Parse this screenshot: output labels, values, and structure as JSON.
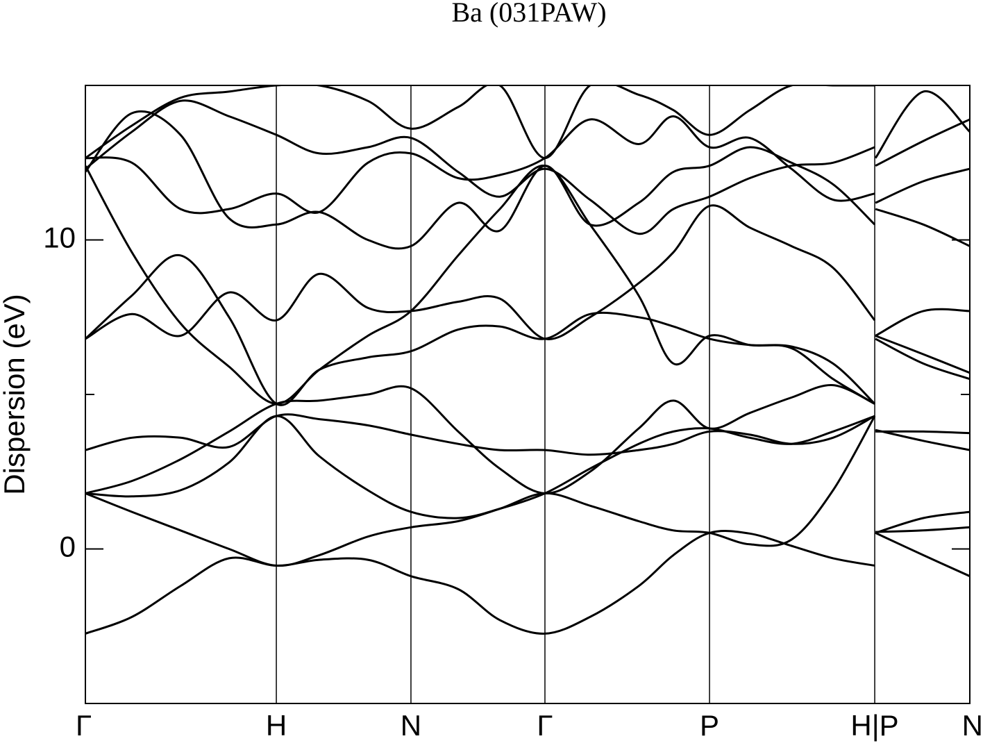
{
  "chart_data": {
    "type": "line",
    "title": "Ba (031PAW)",
    "y_label": "Dispersion (eV)",
    "x": [
      0,
      0.0526,
      0.1075,
      0.1625,
      0.2159,
      0.2645,
      0.3195,
      0.3681,
      0.4215,
      0.4686,
      0.5196,
      0.5706,
      0.6256,
      0.6648,
      0.7057,
      0.7512,
      0.7983,
      0.8454,
      0.8925,
      0.8929,
      0.8933,
      0.9474,
      1
    ],
    "xlim": [
      0,
      1
    ],
    "xticks": [
      {
        "value": 0,
        "label": "Γ"
      },
      {
        "value": 0.2159,
        "label": "H"
      },
      {
        "value": 0.3681,
        "label": "N"
      },
      {
        "value": 0.5196,
        "label": "Γ"
      },
      {
        "value": 0.7057,
        "label": "P"
      },
      {
        "value": 0.8925,
        "label": "H|P"
      },
      {
        "value": 1,
        "label": "N"
      }
    ],
    "ylim": [
      -5,
      15
    ],
    "yticks": [
      0,
      10
    ],
    "minor_yticks": [
      5
    ],
    "grid": true,
    "series": [
      {
        "color": "#000000",
        "values": [
          -2.74,
          -2.2,
          -1.2,
          -0.3,
          -0.54,
          -0.35,
          -0.35,
          -0.88,
          -1.3,
          -2.3,
          -2.74,
          -2.2,
          -1.2,
          -0.2,
          0.52,
          0.5,
          0.1,
          -0.3,
          -0.54,
          null,
          0.52,
          -0.2,
          -0.88
        ]
      },
      {
        "color": "#000000",
        "values": [
          1.8,
          1.2,
          0.6,
          0,
          -0.54,
          -0.2,
          0.4,
          0.7,
          0.9,
          1.3,
          1.8,
          1.4,
          0.9,
          0.6,
          0.52,
          0.15,
          0.3,
          1.9,
          4.3,
          null,
          0.55,
          0.6,
          0.7
        ]
      },
      {
        "color": "#000000",
        "values": [
          1.8,
          1.7,
          1.9,
          2.8,
          4.3,
          3.0,
          1.9,
          1.2,
          1.0,
          1.3,
          1.8,
          2.6,
          3.4,
          3.8,
          3.9,
          3.6,
          3.4,
          3.8,
          4.3,
          null,
          0.52,
          1.0,
          1.2
        ]
      },
      {
        "color": "#000000",
        "values": [
          3.2,
          3.6,
          3.6,
          3.3,
          4.3,
          4.2,
          4.0,
          3.7,
          3.4,
          3.2,
          3.2,
          3.05,
          3.2,
          3.4,
          3.8,
          3.7,
          3.4,
          3.6,
          4.3,
          null,
          3.8,
          3.8,
          3.75
        ]
      },
      {
        "color": "#000000",
        "values": [
          1.8,
          2.2,
          2.9,
          3.8,
          4.7,
          4.8,
          5.0,
          5.2,
          3.8,
          2.6,
          1.8,
          2.5,
          3.9,
          4.8,
          3.9,
          4.4,
          4.9,
          5.3,
          4.7,
          null,
          3.85,
          3.5,
          3.2
        ]
      },
      {
        "color": "#000000",
        "values": [
          6.8,
          8.2,
          9.5,
          7.5,
          4.7,
          5.8,
          6.2,
          6.4,
          7.1,
          7.2,
          6.8,
          7.6,
          7.5,
          7.2,
          6.8,
          6.6,
          6.55,
          6.0,
          4.7,
          null,
          6.8,
          6.0,
          5.5
        ]
      },
      {
        "color": "#000000",
        "values": [
          6.8,
          7.6,
          6.9,
          8.3,
          7.4,
          8.9,
          7.8,
          7.7,
          8.0,
          8.1,
          6.8,
          7.5,
          8.6,
          9.6,
          11.1,
          10.4,
          9.8,
          9.1,
          7.4,
          null,
          6.9,
          7.7,
          7.7
        ]
      },
      {
        "color": "#000000",
        "values": [
          12.4,
          9.6,
          7.3,
          5.9,
          4.7,
          5.8,
          6.9,
          7.7,
          9.5,
          11.0,
          12.4,
          10.5,
          8.2,
          6.0,
          6.9,
          6.6,
          6.5,
          5.5,
          4.7,
          null,
          6.9,
          6.3,
          5.7
        ]
      },
      {
        "color": "#000000",
        "values": [
          12.2,
          14.1,
          13.4,
          10.7,
          10.5,
          10.9,
          10.0,
          9.8,
          11.2,
          10.3,
          12.4,
          10.5,
          11.2,
          12.2,
          12.4,
          13.0,
          12.5,
          11.8,
          10.5,
          null,
          11.0,
          10.5,
          9.8
        ]
      },
      {
        "color": "#000000",
        "values": [
          12.65,
          12.5,
          11.0,
          11.0,
          11.5,
          10.9,
          12.5,
          12.8,
          12.0,
          12.1,
          12.65,
          13.9,
          13.1,
          14.0,
          13.0,
          13.3,
          12.3,
          11.3,
          11.5,
          null,
          11.2,
          11.9,
          12.3
        ]
      },
      {
        "color": "#000000",
        "values": [
          12.65,
          13.7,
          14.6,
          14.8,
          15.0,
          15.0,
          14.5,
          13.6,
          14.3,
          15.0,
          12.65,
          15.0,
          14.7,
          14.2,
          13.4,
          14.2,
          15.0,
          15.0,
          15.0,
          null,
          12.65,
          14.8,
          13.5
        ]
      },
      {
        "color": "#000000",
        "values": [
          12.3,
          13.5,
          14.5,
          14.0,
          13.4,
          12.8,
          13.0,
          13.3,
          12.2,
          11.4,
          12.3,
          11.3,
          10.2,
          11.0,
          11.4,
          12.0,
          12.4,
          12.5,
          13.0,
          null,
          12.4,
          13.2,
          13.9
        ]
      }
    ]
  }
}
